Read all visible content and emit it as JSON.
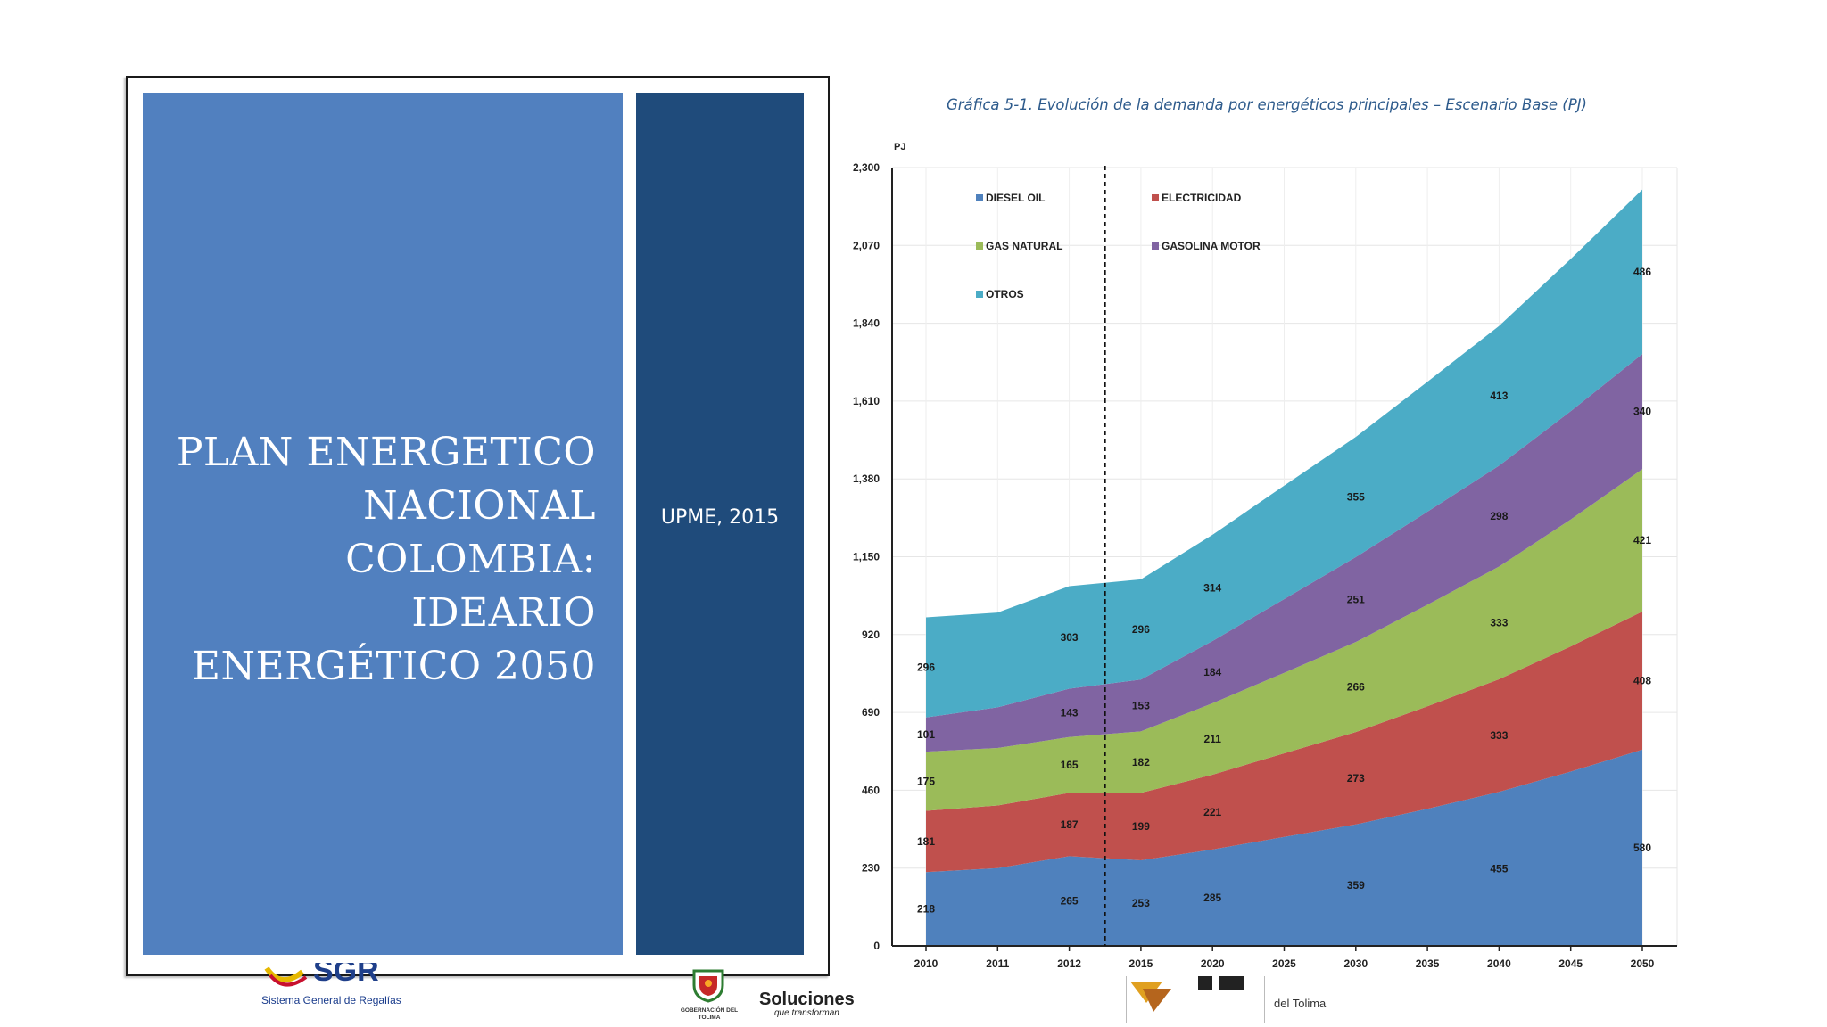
{
  "cover": {
    "title": "PLAN ENERGETICO NACIONAL COLOMBIA: IDEARIO ENERGÉTICO 2050",
    "subtitle": "UPME, 2015",
    "left_panel_color": "#5180bf",
    "right_panel_color": "#1f4b7b"
  },
  "logos": {
    "sgr_caption": "Sistema General de Regalías",
    "gobernacion_caption": "GOBERNACIÓN DEL TOLIMA",
    "soluciones_main": "Soluciones",
    "soluciones_sub": "que transforman",
    "ut_caption": "del Tolima"
  },
  "chart_data": {
    "type": "area",
    "stacked": true,
    "title": "Gráfica 5-1. Evolución de la demanda por energéticos principales – Escenario Base (PJ)",
    "ylabel": "PJ",
    "ylim": [
      0,
      2300
    ],
    "yticks": [
      "0",
      "230",
      "460",
      "690",
      "920",
      "1,150",
      "1,380",
      "1,610",
      "1,840",
      "2,070",
      "2,300"
    ],
    "categories": [
      "2010",
      "2011",
      "2012",
      "2015",
      "2020",
      "2025",
      "2030",
      "2035",
      "2040",
      "2045",
      "2050"
    ],
    "projection_start": "2015",
    "legend_placement": "top-left",
    "series": [
      {
        "name": "DIESEL OIL",
        "color": "#4f81bd",
        "values": [
          218,
          230,
          265,
          253,
          285,
          322,
          359,
          405,
          455,
          515,
          580
        ],
        "labels": [
          "218",
          "",
          "265",
          "253",
          "285",
          "",
          "359",
          "",
          "455",
          "",
          "580"
        ]
      },
      {
        "name": "ELECTRICIDAD",
        "color": "#c0504d",
        "values": [
          181,
          185,
          187,
          199,
          221,
          247,
          273,
          303,
          333,
          370,
          408
        ],
        "labels": [
          "181",
          "",
          "187",
          "199",
          "221",
          "",
          "273",
          "",
          "333",
          "",
          "408"
        ]
      },
      {
        "name": "GAS NATURAL",
        "color": "#9bbb59",
        "values": [
          175,
          170,
          165,
          182,
          211,
          238,
          266,
          300,
          333,
          375,
          421
        ],
        "labels": [
          "175",
          "",
          "165",
          "182",
          "211",
          "",
          "266",
          "",
          "333",
          "",
          "421"
        ]
      },
      {
        "name": "GASOLINA MOTOR",
        "color": "#8064a2",
        "values": [
          101,
          120,
          143,
          153,
          184,
          218,
          251,
          275,
          298,
          320,
          340
        ],
        "labels": [
          "101",
          "",
          "143",
          "153",
          "184",
          "",
          "251",
          "",
          "298",
          "",
          "340"
        ]
      },
      {
        "name": "OTROS",
        "color": "#4bacc6",
        "values": [
          296,
          280,
          303,
          296,
          314,
          335,
          355,
          384,
          413,
          450,
          486
        ],
        "labels": [
          "296",
          "",
          "303",
          "296",
          "314",
          "",
          "355",
          "",
          "413",
          "",
          "486"
        ]
      }
    ]
  }
}
